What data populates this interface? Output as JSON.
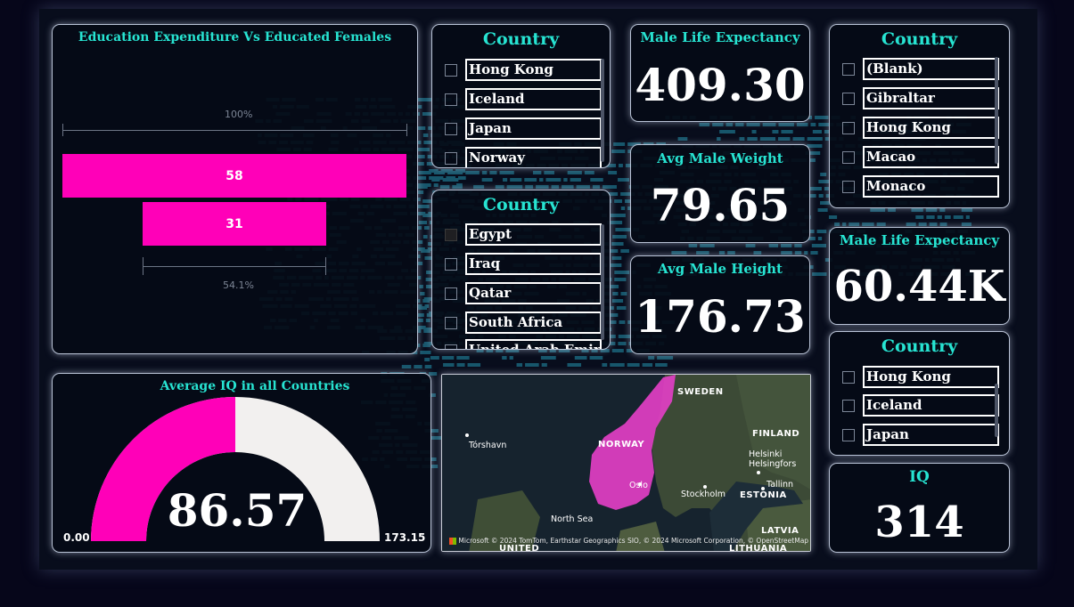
{
  "funnel": {
    "title": "Education Expenditure Vs Educated Females",
    "top_label": "100%",
    "bottom_label": "54.1%",
    "bars": [
      {
        "label": "58",
        "value": 58
      },
      {
        "label": "31",
        "value": 31
      }
    ]
  },
  "gauge": {
    "title": "Average IQ in all Countries",
    "value": "86.57",
    "min": "0.00",
    "max": "173.15",
    "fill_fraction": 0.5,
    "fill_color": "#ff00b8",
    "track_color": "#f2f0ef"
  },
  "slicer1": {
    "title": "Country",
    "items": [
      "Hong Kong",
      "Iceland",
      "Japan",
      "Norway"
    ]
  },
  "slicer2": {
    "title": "Country",
    "items": [
      "Egypt",
      "Iraq",
      "Qatar",
      "South Africa",
      "United Arab Emirates"
    ]
  },
  "slicer3": {
    "title": "Country",
    "items": [
      "(Blank)",
      "Gibraltar",
      "Hong Kong",
      "Macao",
      "Monaco"
    ]
  },
  "slicer4": {
    "title": "Country",
    "items": [
      "Hong Kong",
      "Iceland",
      "Japan"
    ]
  },
  "cards": {
    "male_life_exp": {
      "title": "Male Life Expectancy",
      "value": "409.30"
    },
    "avg_male_weight": {
      "title": "Avg Male Weight",
      "value": "79.65"
    },
    "avg_male_height": {
      "title": "Avg Male Height",
      "value": "176.73"
    },
    "female_life_exp": {
      "title": "Male Life Expectancy",
      "value": "60.44K"
    },
    "iq": {
      "title": "IQ",
      "value": "314"
    }
  },
  "map": {
    "labels": {
      "sweden": "SWEDEN",
      "norway": "NORWAY",
      "finland": "FINLAND",
      "estonia": "ESTONIA",
      "latvia": "LATVIA",
      "lithuania": "LITHUANIA",
      "north_sea": "North Sea",
      "torshavn": "Tórshavn",
      "oslo": "Oslo",
      "stockholm": "Stockholm",
      "helsinki": "Helsinki\nHelsingfors",
      "tallinn": "Tallinn",
      "united": "UNITED"
    },
    "attribution": "© 2024 TomTom, Earthstar Geographics SIO, © 2024 Microsoft Corporation, © OpenStreetMap",
    "brand": "Microsoft",
    "highlight_color": "#e23fc4"
  }
}
